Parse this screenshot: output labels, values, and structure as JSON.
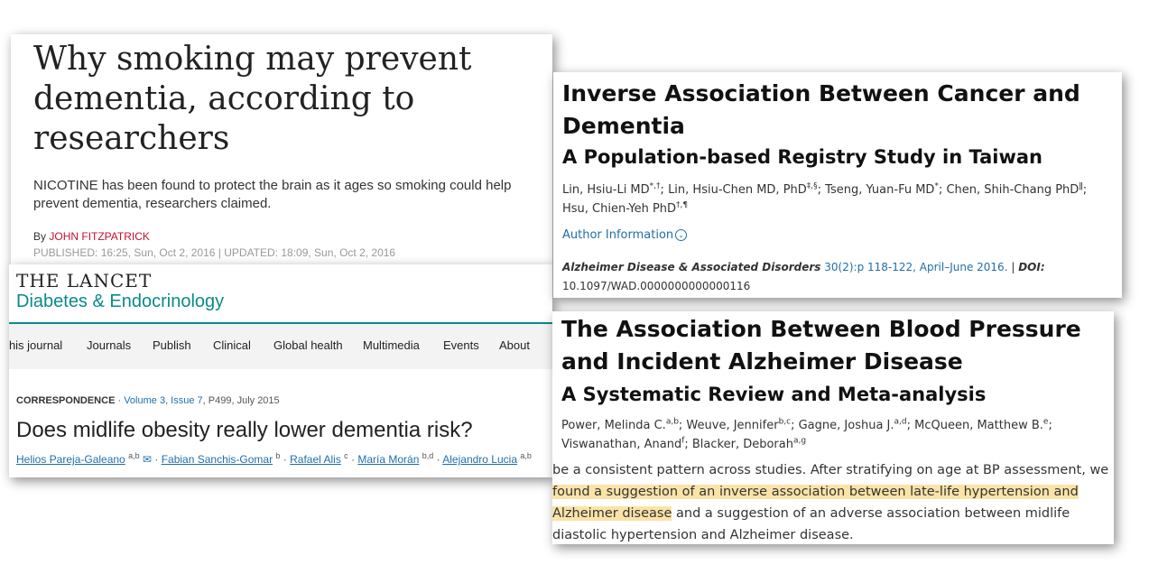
{
  "news": {
    "headline": "Why smoking may prevent dementia, according to researchers",
    "subtitle": "NICOTINE has been found to protect the brain as it ages so smoking could help prevent dementia, researchers claimed.",
    "by_label": "By",
    "author": "JOHN FITZPATRICK",
    "published": "PUBLISHED: 16:25, Sun, Oct 2, 2016 | UPDATED: 18:09, Sun, Oct 2, 2016",
    "accent_color": "#c8102e"
  },
  "lancet": {
    "journal_line1": "THE LANCET",
    "journal_line2": "Diabetes & Endocrinology",
    "brand_color": "#0a8a8a",
    "nav": [
      "This journal",
      "Journals",
      "Publish",
      "Clinical",
      "Global health",
      "Multimedia",
      "Events",
      "About"
    ],
    "meta_type": "CORRESPONDENCE",
    "meta_volume": "Volume 3, Issue 7",
    "meta_rest": ", P499, July 2015",
    "title": "Does midlife obesity really lower dementia risk?",
    "authors": [
      {
        "name": "Helios Pareja-Galeano",
        "sup": "a,b",
        "icon": "mail-icon"
      },
      {
        "name": "Fabian Sanchis-Gomar",
        "sup": "b"
      },
      {
        "name": "Rafael Alis",
        "sup": "c"
      },
      {
        "name": "María Morán",
        "sup": "b,d"
      },
      {
        "name": "Alejandro Lucia",
        "sup": "a,b"
      }
    ]
  },
  "cancer": {
    "title": "Inverse Association Between Cancer and Dementia",
    "subtitle": "A Population-based Registry Study in Taiwan",
    "authors": [
      {
        "name": "Lin, Hsiu-Li MD",
        "sup": "*,†"
      },
      {
        "name": "Lin, Hsiu-Chen MD, PhD",
        "sup": "‡,§"
      },
      {
        "name": "Tseng, Yuan-Fu MD",
        "sup": "*"
      },
      {
        "name": "Chen, Shih-Chang PhD",
        "sup": "ǁ"
      },
      {
        "name": "Hsu, Chien-Yeh PhD",
        "sup": "†,¶"
      }
    ],
    "author_info": "Author Information",
    "journal": "Alzheimer Disease & Associated Disorders",
    "citation": "30(2):p 118-122, April–June 2016.",
    "doi_label": "DOI:",
    "doi": "10.1097/WAD.0000000000000116"
  },
  "bp": {
    "title": "The Association Between Blood Pressure and Incident Alzheimer Disease",
    "subtitle": "A Systematic Review and Meta-analysis",
    "authors": [
      {
        "name": "Power, Melinda C.",
        "sup": "a,b"
      },
      {
        "name": "Weuve, Jennifer",
        "sup": "b,c"
      },
      {
        "name": "Gagne, Joshua J.",
        "sup": "a,d"
      },
      {
        "name": "McQueen, Matthew B.",
        "sup": "e"
      },
      {
        "name": "Viswanathan, Anand",
        "sup": "f"
      },
      {
        "name": "Blacker, Deborah",
        "sup": "a,g"
      }
    ],
    "abstract_pre": "be a consistent pattern across studies. After stratifying on age at BP assessment, we ",
    "abstract_highlight": "found a suggestion of an inverse association between late-life hypertension and Alzheimer disease",
    "abstract_post": " and a suggestion of an adverse association between midlife diastolic hypertension and Alzheimer disease.",
    "highlight_color": "#fbe3a8"
  }
}
